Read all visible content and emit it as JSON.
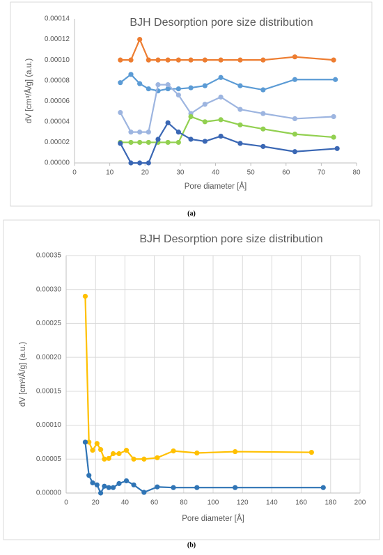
{
  "chart_data": [
    {
      "type": "line",
      "title": "BJH Desorption pore size distribution",
      "caption": "(a)",
      "x_label": "Pore diameter [Å]",
      "y_label": "dV [cm³/Å/g] (a.u.)",
      "xlim": [
        0,
        80
      ],
      "xticks": [
        0,
        10,
        20,
        30,
        40,
        50,
        60,
        70,
        80
      ],
      "ylim": [
        0,
        0.00014
      ],
      "yticks": [
        {
          "value": 0,
          "label": "0.00000"
        },
        {
          "value": 2e-05,
          "label": "0.00002"
        },
        {
          "value": 4e-05,
          "label": "0.00004"
        },
        {
          "value": 6e-05,
          "label": "0.00006"
        },
        {
          "value": 8e-05,
          "label": "0.00008"
        },
        {
          "value": 0.0001,
          "label": "0.00010"
        },
        {
          "value": 0.00012,
          "label": "0.00012"
        },
        {
          "value": 0.00014,
          "label": "0.00014"
        }
      ],
      "grid": "none",
      "series": [
        {
          "color": "#ed7d31",
          "x": [
            13,
            16,
            18.5,
            21,
            23.7,
            26.5,
            29.5,
            33,
            37,
            41.5,
            47,
            53.5,
            62.5,
            73.5
          ],
          "values": [
            0.0001,
            0.0001,
            0.00012,
            0.0001,
            0.0001,
            0.0001,
            0.0001,
            0.0001,
            0.0001,
            0.0001,
            0.0001,
            0.0001,
            0.000103,
            0.0001
          ]
        },
        {
          "color": "#5b9bd5",
          "x": [
            13,
            16,
            18.5,
            21,
            23.7,
            26.5,
            29.5,
            33,
            37,
            41.5,
            47,
            53.5,
            62.5,
            74
          ],
          "values": [
            7.8e-05,
            8.6e-05,
            7.7e-05,
            7.2e-05,
            7e-05,
            7.2e-05,
            7.2e-05,
            7.3e-05,
            7.5e-05,
            8.3e-05,
            7.5e-05,
            7.1e-05,
            8.1e-05,
            8.1e-05
          ]
        },
        {
          "color": "#9db5e0",
          "x": [
            13,
            16,
            18.5,
            21,
            23.7,
            26.5,
            29.5,
            33,
            37,
            41.5,
            47,
            53.5,
            62.5,
            73.5
          ],
          "values": [
            4.9e-05,
            3e-05,
            3e-05,
            3e-05,
            7.6e-05,
            7.6e-05,
            6.6e-05,
            4.8e-05,
            5.7e-05,
            6.4e-05,
            5.2e-05,
            4.8e-05,
            4.3e-05,
            4.5e-05
          ]
        },
        {
          "color": "#92d050",
          "x": [
            13,
            16,
            18.5,
            21,
            23.7,
            26.5,
            29.5,
            33,
            37,
            41.5,
            47,
            53.5,
            62.5,
            73.5
          ],
          "values": [
            2e-05,
            2e-05,
            2e-05,
            2e-05,
            2e-05,
            2e-05,
            2e-05,
            4.5e-05,
            4e-05,
            4.2e-05,
            3.7e-05,
            3.3e-05,
            2.8e-05,
            2.5e-05
          ]
        },
        {
          "color": "#3a67b4",
          "x": [
            13,
            16,
            18.5,
            21,
            23.7,
            26.5,
            29.5,
            33,
            37,
            41.5,
            47,
            53.5,
            62.5,
            74.5
          ],
          "values": [
            1.9e-05,
            0,
            0,
            0,
            2.3e-05,
            3.9e-05,
            3e-05,
            2.3e-05,
            2.1e-05,
            2.6e-05,
            1.9e-05,
            1.6e-05,
            1.1e-05,
            1.4e-05
          ]
        }
      ]
    },
    {
      "type": "line",
      "title": "BJH Desorption pore size distribution",
      "caption": "(b)",
      "x_label": "Pore diameter [Å]",
      "y_label": "dV [cm³/Å/g] (a.u.)",
      "xlim": [
        0,
        200
      ],
      "xticks": [
        0,
        20,
        40,
        60,
        80,
        100,
        120,
        140,
        160,
        180,
        200
      ],
      "ylim": [
        0,
        0.00035
      ],
      "yticks": [
        {
          "value": 0,
          "label": "0.00000"
        },
        {
          "value": 5e-05,
          "label": "0.00005"
        },
        {
          "value": 0.0001,
          "label": "0.00010"
        },
        {
          "value": 0.00015,
          "label": "0.00015"
        },
        {
          "value": 0.0002,
          "label": "0.00020"
        },
        {
          "value": 0.00025,
          "label": "0.00025"
        },
        {
          "value": 0.0003,
          "label": "0.00030"
        },
        {
          "value": 0.00035,
          "label": "0.00035"
        }
      ],
      "grid": "both",
      "series": [
        {
          "color": "#ffc000",
          "x": [
            13,
            15.5,
            18,
            21,
            23.5,
            26,
            29,
            32,
            36,
            41,
            46,
            53,
            62,
            73,
            89,
            115,
            167
          ],
          "values": [
            0.00029,
            7.5e-05,
            6.3e-05,
            7.3e-05,
            6.4e-05,
            5e-05,
            5.1e-05,
            5.8e-05,
            5.8e-05,
            6.3e-05,
            5e-05,
            5e-05,
            5.2e-05,
            6.2e-05,
            5.9e-05,
            6.1e-05,
            6e-05
          ]
        },
        {
          "color": "#2f74b5",
          "x": [
            13,
            15.5,
            18,
            21,
            23.5,
            26,
            29,
            32,
            36,
            41,
            46,
            53,
            62,
            73,
            89,
            115,
            175
          ],
          "values": [
            7.5e-05,
            2.6e-05,
            1.5e-05,
            1.2e-05,
            0,
            1e-05,
            8e-06,
            8e-06,
            1.4e-05,
            1.8e-05,
            1.2e-05,
            1e-06,
            9e-06,
            8e-06,
            8e-06,
            8e-06,
            8e-06
          ]
        }
      ]
    }
  ]
}
